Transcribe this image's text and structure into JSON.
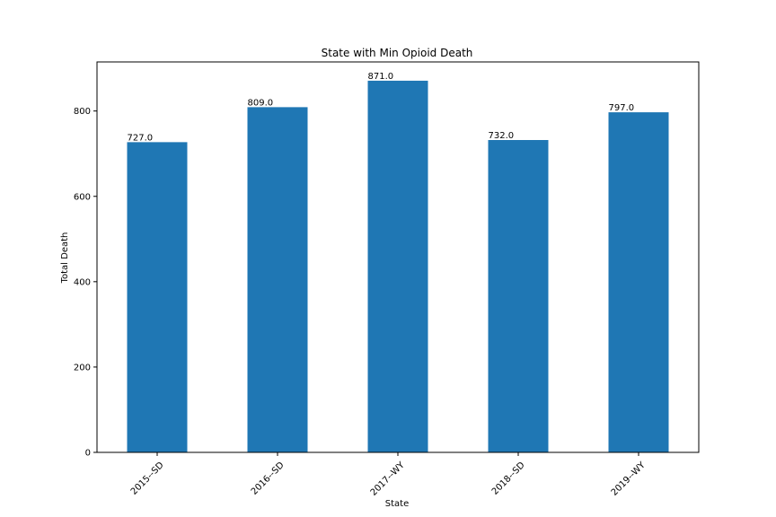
{
  "chart_data": {
    "type": "bar",
    "title": "State with Min Opioid Death",
    "xlabel": "State",
    "ylabel": "Total Death",
    "categories": [
      "2015--SD",
      "2016--SD",
      "2017--WY",
      "2018--SD",
      "2019--WY"
    ],
    "values": [
      727,
      809,
      871,
      732,
      797
    ],
    "data_labels": [
      "727.0",
      "809.0",
      "871.0",
      "732.0",
      "797.0"
    ],
    "ylim": [
      0,
      915
    ],
    "yticks": [
      0,
      200,
      400,
      600,
      800
    ],
    "grid": false,
    "legend": "none",
    "bar_color": "#1f77b4",
    "xtick_rotation": 45
  }
}
